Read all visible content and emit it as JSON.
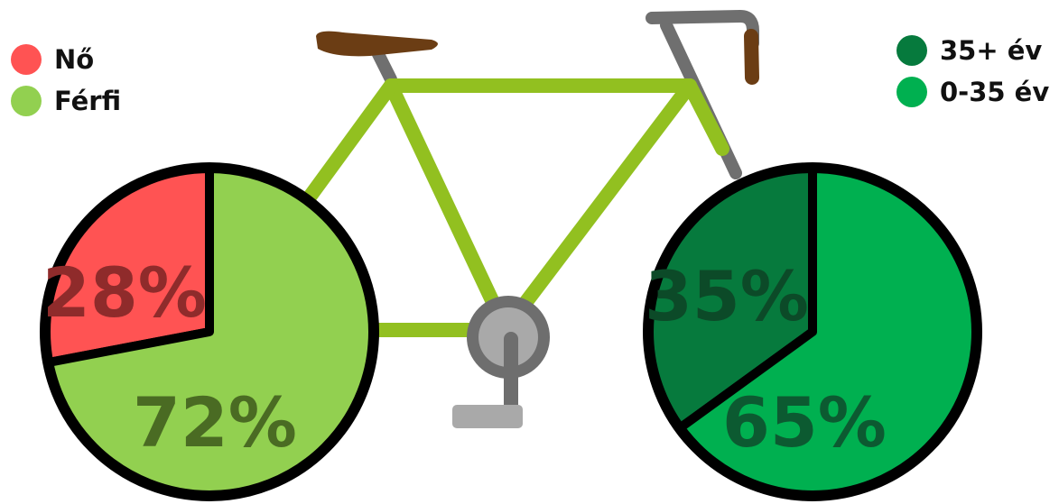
{
  "chart_data": [
    {
      "type": "pie",
      "title": "",
      "categories": [
        "Nő",
        "Férfi"
      ],
      "values": [
        28,
        72
      ],
      "labels": [
        "28%",
        "72%"
      ],
      "colors": [
        "#ff5353",
        "#92d050"
      ],
      "label_colors": [
        "#8f2b2b",
        "#4a6b23"
      ],
      "legend_position": "top-left"
    },
    {
      "type": "pie",
      "title": "",
      "categories": [
        "35+ év",
        "0-35 év"
      ],
      "values": [
        35,
        65
      ],
      "labels": [
        "35%",
        "65%"
      ],
      "colors": [
        "#067a3d",
        "#00b050"
      ],
      "label_colors": [
        "#0c4a28",
        "#0c5a31"
      ],
      "legend_position": "top-right"
    }
  ]
}
